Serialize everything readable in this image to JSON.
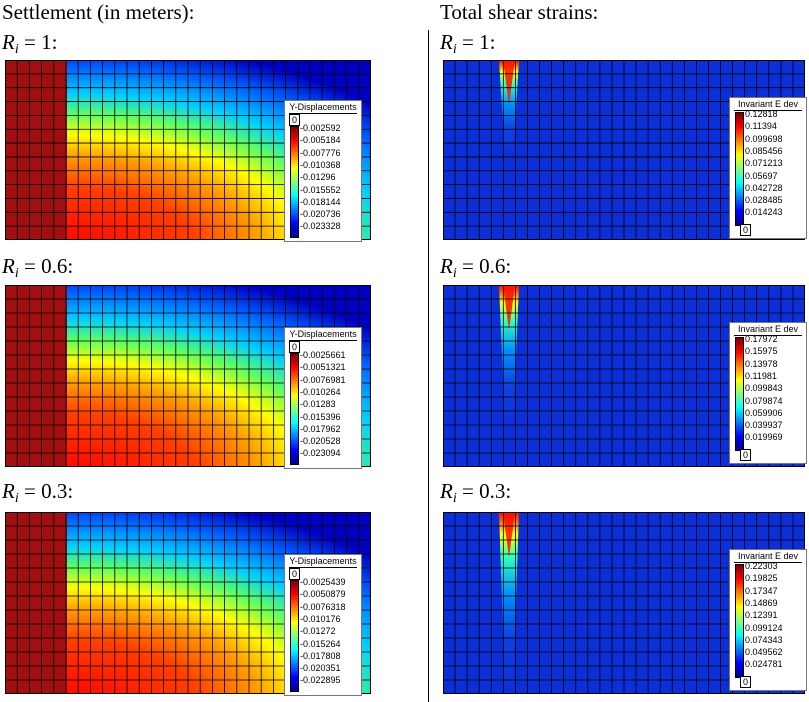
{
  "left_title": "Settlement (in meters):",
  "right_title": "Total shear strains:",
  "panels": [
    {
      "label_rel": "1:",
      "disp": {
        "title": "Y-Displacements",
        "zero": "0",
        "ticks": [
          "-0.002592",
          "-0.005184",
          "-0.007776",
          "-0.010368",
          "-0.01296",
          "-0.015552",
          "-0.018144",
          "-0.020736",
          "-0.023328"
        ]
      },
      "shear": {
        "title": "Invariant E dev",
        "zero": "0",
        "ticks": [
          "0.12818",
          "0.11394",
          "0.099698",
          "0.085456",
          "0.071213",
          "0.05697",
          "0.042728",
          "0.028485",
          "0.014243"
        ]
      }
    },
    {
      "label_rel": "0.6:",
      "disp": {
        "title": "Y-Displacements",
        "zero": "0",
        "ticks": [
          "-0.0025661",
          "-0.0051321",
          "-0.0076981",
          "-0.010264",
          "-0.01283",
          "-0.015396",
          "-0.017962",
          "-0.020528",
          "-0.023094"
        ]
      },
      "shear": {
        "title": "Invariant E dev",
        "zero": "0",
        "ticks": [
          "0.17972",
          "0.15975",
          "0.13978",
          "0.11981",
          "0.099843",
          "0.079874",
          "0.059906",
          "0.039937",
          "0.019969"
        ]
      }
    },
    {
      "label_rel": "0.3:",
      "disp": {
        "title": "Y-Displacements",
        "zero": "0",
        "ticks": [
          "-0.0025439",
          "-0.0050879",
          "-0.0076318",
          "-0.010176",
          "-0.01272",
          "-0.015264",
          "-0.017808",
          "-0.020351",
          "-0.022895"
        ]
      },
      "shear": {
        "title": "Invariant E dev",
        "zero": "0",
        "ticks": [
          "0.22303",
          "0.19825",
          "0.17347",
          "0.14869",
          "0.12391",
          "0.099124",
          "0.074343",
          "0.049562",
          "0.024781"
        ]
      }
    }
  ],
  "label_var": "R",
  "label_sub": "i",
  "label_eq": "=",
  "colormap": [
    "#00008f",
    "#0000ff",
    "#0080ff",
    "#00ffff",
    "#80ff80",
    "#ffff00",
    "#ff8000",
    "#ff0000",
    "#800000"
  ]
}
